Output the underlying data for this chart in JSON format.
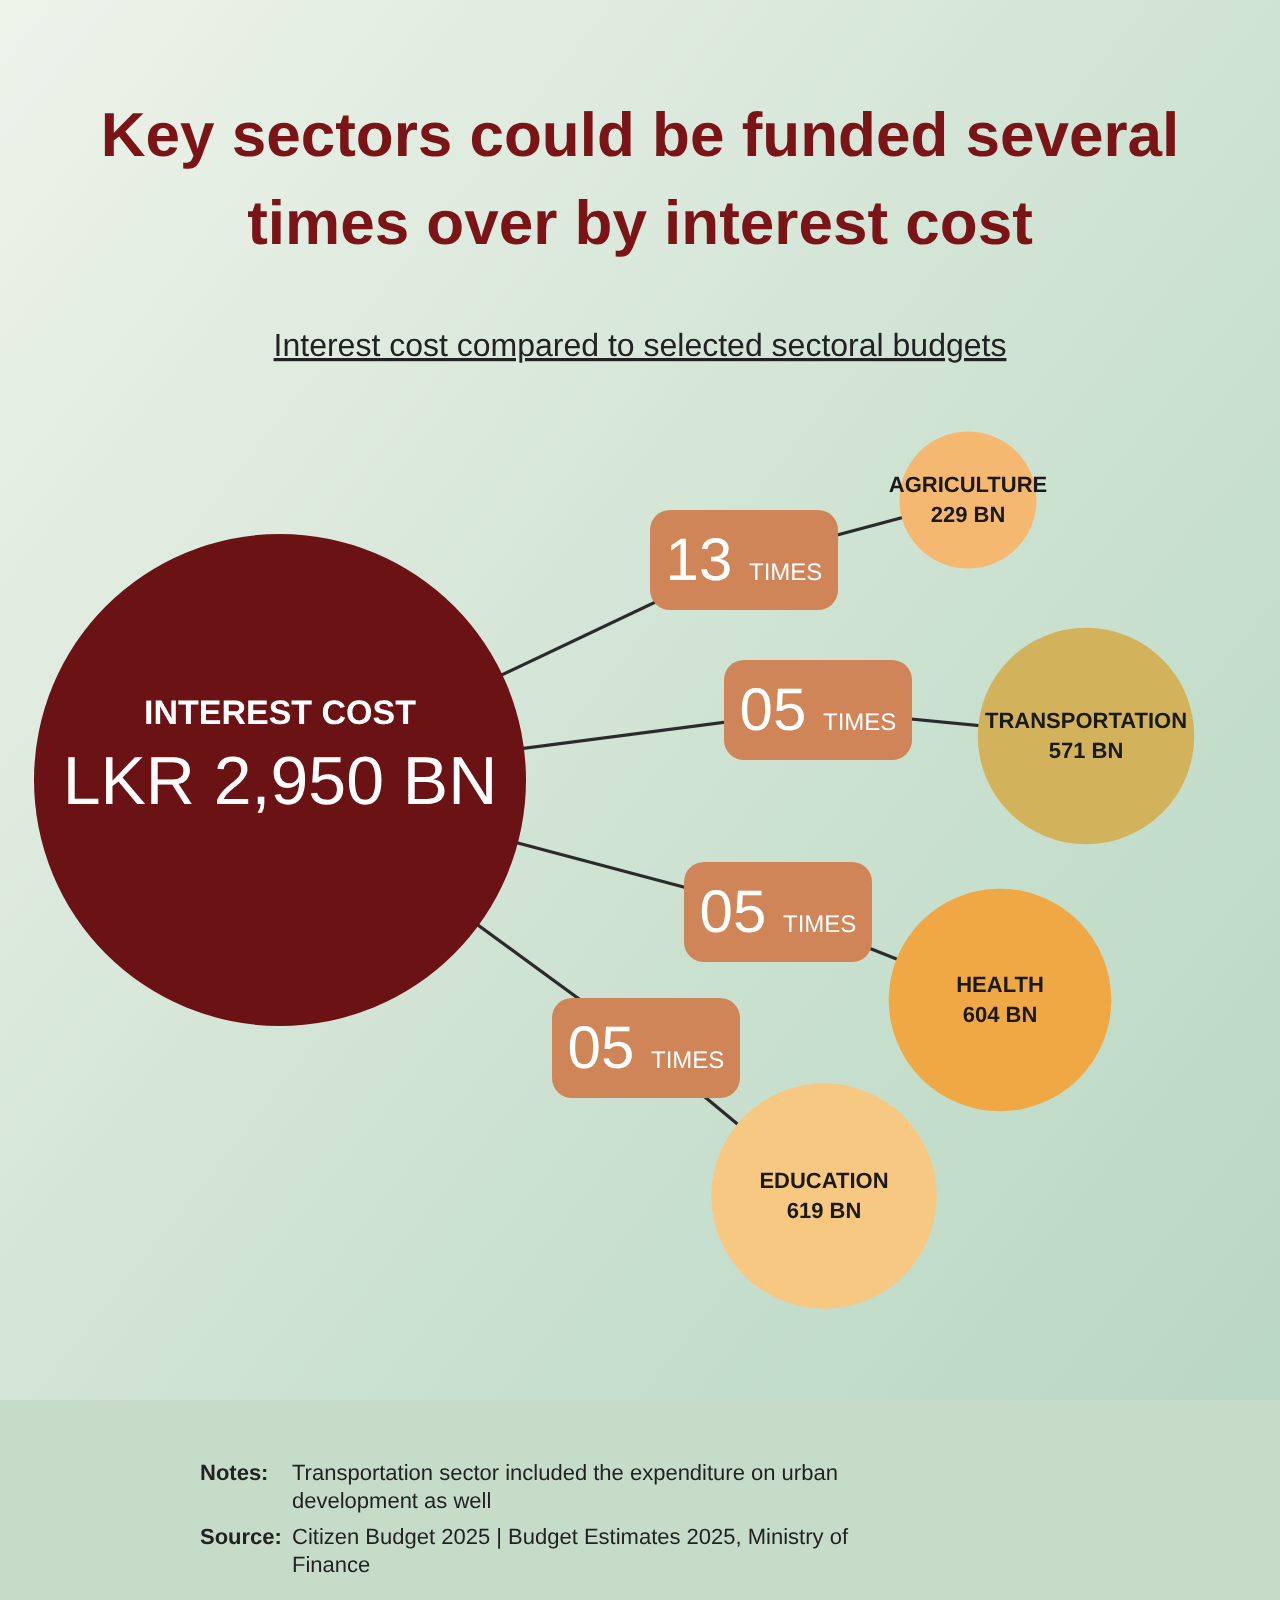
{
  "chart_data": {
    "type": "other",
    "title": "Key sectors could be funded several times over by interest cost",
    "subtitle": "Interest cost compared to selected sectoral budgets",
    "categories": [
      "INTEREST COST",
      "AGRICULTURE",
      "TRANSPORTATION",
      "HEALTH",
      "EDUCATION"
    ],
    "values": [
      2950,
      229,
      571,
      604,
      619
    ],
    "value_labels": [
      "LKR 2,950 BN",
      "229 BN",
      "571 BN",
      "604 BN",
      "619 BN"
    ],
    "colors": [
      "#6b1215",
      "#f5b870",
      "#d2b35c",
      "#f0a844",
      "#f7c882"
    ],
    "annotations": [
      {
        "text": "13 TIMES",
        "x": "AGRICULTURE"
      },
      {
        "text": "05 TIMES",
        "x": "TRANSPORTATION"
      },
      {
        "text": "05 TIMES",
        "x": "HEALTH"
      },
      {
        "text": "05 TIMES",
        "x": "EDUCATION"
      },
      "Notes: Transportation sector included the expenditure on urban development as well",
      "Source: Citizen Budget 2025 | Budget Estimates 2025, Ministry of Finance"
    ]
  }
}
